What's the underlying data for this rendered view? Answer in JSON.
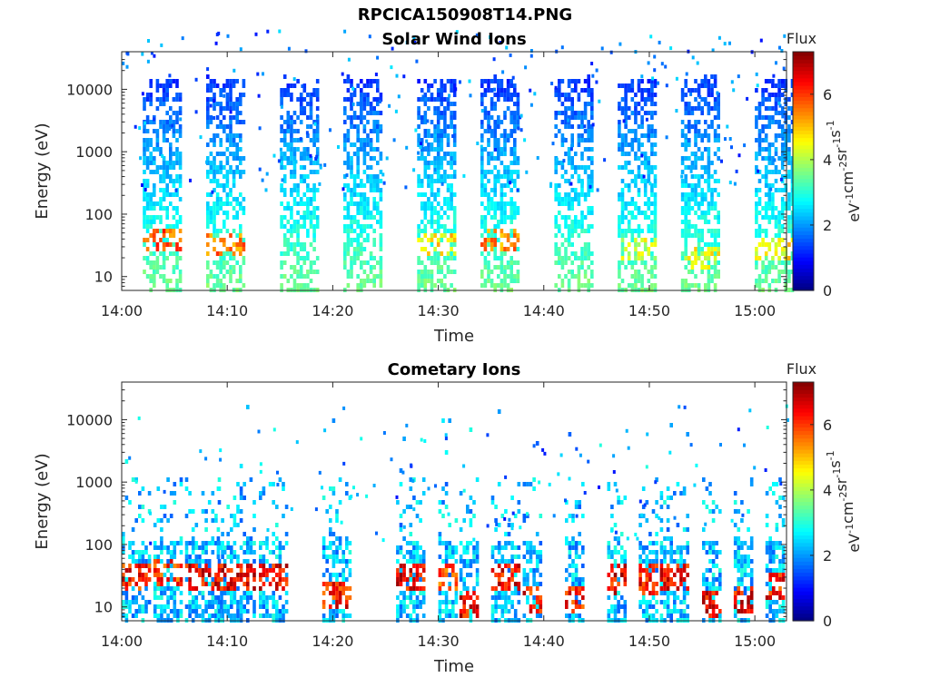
{
  "figure_title": "RPCICA150908T14.PNG",
  "chart_data": [
    {
      "type": "heatmap",
      "title": "Solar Wind Ions",
      "xlabel": "Time",
      "ylabel": "Energy (eV)",
      "y_scale": "log",
      "ylim": [
        6,
        40000
      ],
      "y_ticks": [
        10,
        100,
        1000,
        10000
      ],
      "y_tick_labels": [
        "10",
        "100",
        "1000",
        "10000"
      ],
      "xlim": [
        "14:00",
        "15:03"
      ],
      "x_tick_labels": [
        "14:00",
        "14:10",
        "14:20",
        "14:30",
        "14:40",
        "14:50",
        "15:00"
      ],
      "colorbar": {
        "title": "Flux",
        "label": "eV-1cm-2sr-1s-1",
        "range": [
          0,
          7.3
        ],
        "ticks": [
          0,
          2,
          4,
          6
        ]
      },
      "colormap": "jet",
      "bursts": [
        {
          "start": "14:02",
          "end": "14:05",
          "peak_energy_eV": 40,
          "peak_flux": 6.3
        },
        {
          "start": "14:08",
          "end": "14:11",
          "peak_energy_eV": 35,
          "peak_flux": 6.2
        },
        {
          "start": "14:15",
          "end": "14:18",
          "peak_energy_eV": 0,
          "peak_flux": 0
        },
        {
          "start": "14:21",
          "end": "14:24",
          "peak_energy_eV": 0,
          "peak_flux": 0
        },
        {
          "start": "14:28",
          "end": "14:31",
          "peak_energy_eV": 35,
          "peak_flux": 5.3
        },
        {
          "start": "14:34",
          "end": "14:37",
          "peak_energy_eV": 40,
          "peak_flux": 6.0
        },
        {
          "start": "14:41",
          "end": "14:44",
          "peak_energy_eV": 0,
          "peak_flux": 0
        },
        {
          "start": "14:47",
          "end": "14:50",
          "peak_energy_eV": 30,
          "peak_flux": 4.8
        },
        {
          "start": "14:53",
          "end": "14:56",
          "peak_energy_eV": 20,
          "peak_flux": 5.0
        },
        {
          "start": "15:00",
          "end": "15:03",
          "peak_energy_eV": 30,
          "peak_flux": 5.2
        }
      ]
    },
    {
      "type": "heatmap",
      "title": "Cometary Ions",
      "xlabel": "Time",
      "ylabel": "Energy (eV)",
      "y_scale": "log",
      "ylim": [
        6,
        40000
      ],
      "y_ticks": [
        10,
        100,
        1000,
        10000
      ],
      "y_tick_labels": [
        "10",
        "100",
        "1000",
        "10000"
      ],
      "xlim": [
        "14:00",
        "15:03"
      ],
      "x_tick_labels": [
        "14:00",
        "14:10",
        "14:20",
        "14:30",
        "14:40",
        "14:50",
        "15:00"
      ],
      "colorbar": {
        "title": "Flux",
        "label": "eV-1cm-2sr-1s-1",
        "range": [
          0,
          7.3
        ],
        "ticks": [
          0,
          2,
          4,
          6
        ]
      },
      "colormap": "jet",
      "bursts": [
        {
          "start": "14:00",
          "end": "14:02",
          "peak_energy_eV": 35,
          "peak_flux": 7.0
        },
        {
          "start": "14:03",
          "end": "14:05",
          "peak_energy_eV": 40,
          "peak_flux": 6.8
        },
        {
          "start": "14:06",
          "end": "14:09",
          "peak_energy_eV": 35,
          "peak_flux": 7.2
        },
        {
          "start": "14:09",
          "end": "14:12",
          "peak_energy_eV": 35,
          "peak_flux": 7.2
        },
        {
          "start": "14:13",
          "end": "14:15",
          "peak_energy_eV": 35,
          "peak_flux": 7.2
        },
        {
          "start": "14:19",
          "end": "14:21",
          "peak_energy_eV": 18,
          "peak_flux": 7.0
        },
        {
          "start": "14:26",
          "end": "14:28",
          "peak_energy_eV": 35,
          "peak_flux": 7.2
        },
        {
          "start": "14:30",
          "end": "14:31",
          "peak_energy_eV": 35,
          "peak_flux": 6.5
        },
        {
          "start": "14:32",
          "end": "14:33",
          "peak_energy_eV": 12,
          "peak_flux": 7.2
        },
        {
          "start": "14:35",
          "end": "14:37",
          "peak_energy_eV": 35,
          "peak_flux": 7.2
        },
        {
          "start": "14:38",
          "end": "14:39",
          "peak_energy_eV": 15,
          "peak_flux": 7.0
        },
        {
          "start": "14:42",
          "end": "14:43",
          "peak_energy_eV": 15,
          "peak_flux": 6.8
        },
        {
          "start": "14:46",
          "end": "14:47",
          "peak_energy_eV": 30,
          "peak_flux": 7.2
        },
        {
          "start": "14:49",
          "end": "14:50",
          "peak_energy_eV": 30,
          "peak_flux": 7.0
        },
        {
          "start": "14:51",
          "end": "14:53",
          "peak_energy_eV": 35,
          "peak_flux": 7.2
        },
        {
          "start": "14:55",
          "end": "14:56",
          "peak_energy_eV": 12,
          "peak_flux": 7.2
        },
        {
          "start": "14:58",
          "end": "14:59",
          "peak_energy_eV": 15,
          "peak_flux": 7.2
        },
        {
          "start": "15:01",
          "end": "15:02",
          "peak_energy_eV": 25,
          "peak_flux": 7.0
        }
      ]
    }
  ]
}
